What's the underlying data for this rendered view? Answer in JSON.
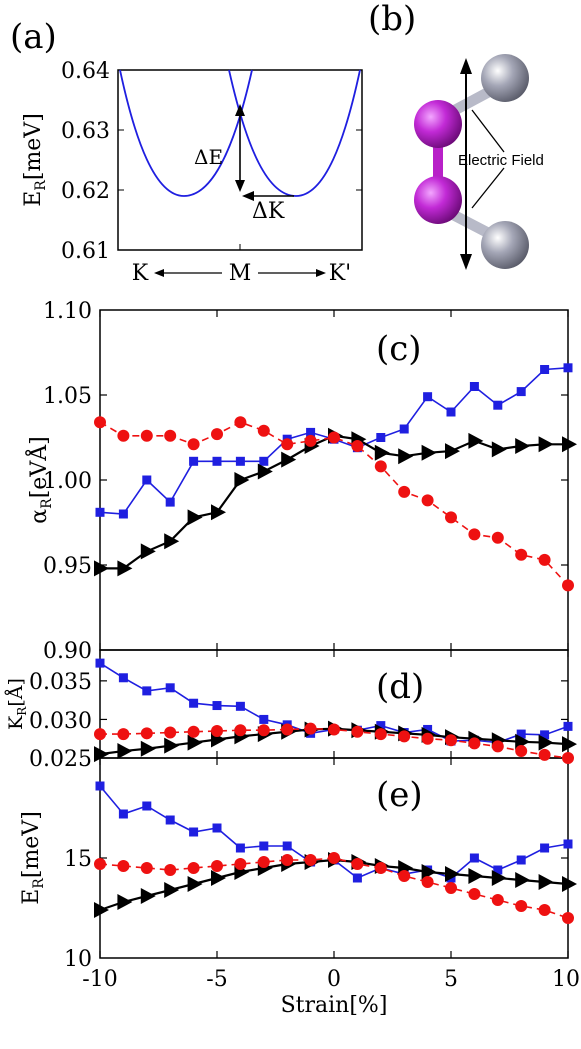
{
  "panel_labels": {
    "a": "(a)",
    "b": "(b)",
    "c": "(c)",
    "d": "(d)",
    "e": "(e)"
  },
  "panel_a": {
    "ylabel": "E_R[meV]",
    "yticks": [
      "0.64",
      "0.63",
      "0.62",
      "0.61"
    ],
    "xticks": [
      "K",
      "M",
      "K'"
    ],
    "annot_dE": "ΔE",
    "annot_dK": "ΔK"
  },
  "panel_b": {
    "field_label": "Electric Field",
    "colors": {
      "purple": "#bb22cc",
      "gray": "#9a9cac"
    }
  },
  "xaxis": {
    "label": "Strain[%]",
    "ticks": [
      "-10",
      "-5",
      "0",
      "5",
      "10"
    ],
    "range": [
      -10,
      10
    ]
  },
  "colors": {
    "blue": "#1f1fe0",
    "red": "#ee1111",
    "black": "#000000"
  },
  "chart_data": [
    {
      "type": "line",
      "panel": "(c)",
      "ylabel": "α_R[eVÅ]",
      "ylim": [
        0.9,
        1.1
      ],
      "yticks": [
        "0.90",
        "0.95",
        "1.00",
        "1.05",
        "1.10"
      ],
      "x": [
        -10,
        -9,
        -8,
        -7,
        -6,
        -5,
        -4,
        -3,
        -2,
        -1,
        0,
        1,
        2,
        3,
        4,
        5,
        6,
        7,
        8,
        9,
        10
      ],
      "series": [
        {
          "marker": "square",
          "color": "#1f1fe0",
          "dash": "solid",
          "values": [
            0.981,
            0.98,
            1.0,
            0.987,
            1.011,
            1.011,
            1.011,
            1.011,
            1.024,
            1.028,
            1.024,
            1.019,
            1.025,
            1.03,
            1.049,
            1.04,
            1.055,
            1.044,
            1.052,
            1.065,
            1.066
          ]
        },
        {
          "marker": "circle",
          "color": "#ee1111",
          "dash": "dashed",
          "values": [
            1.034,
            1.026,
            1.026,
            1.026,
            1.021,
            1.027,
            1.034,
            1.029,
            1.021,
            1.023,
            1.025,
            1.02,
            1.008,
            0.993,
            0.988,
            0.978,
            0.968,
            0.966,
            0.956,
            0.953,
            0.938
          ]
        },
        {
          "marker": "triangle",
          "color": "#000000",
          "dash": "solid",
          "values": [
            0.948,
            0.948,
            0.958,
            0.964,
            0.978,
            0.981,
            1.0,
            1.005,
            1.012,
            1.02,
            1.026,
            1.024,
            1.016,
            1.014,
            1.016,
            1.017,
            1.023,
            1.018,
            1.02,
            1.021,
            1.021
          ]
        }
      ]
    },
    {
      "type": "line",
      "panel": "(d)",
      "ylabel": "K_R[Å]",
      "ylim": [
        0.025,
        0.039
      ],
      "yticks": [
        "0.025",
        "0.030",
        "0.035"
      ],
      "x": [
        -10,
        -9,
        -8,
        -7,
        -6,
        -5,
        -4,
        -3,
        -2,
        -1,
        0,
        1,
        2,
        3,
        4,
        5,
        6,
        7,
        8,
        9,
        10
      ],
      "series": [
        {
          "marker": "square",
          "color": "#1f1fe0",
          "dash": "solid",
          "values": [
            0.0373,
            0.0354,
            0.0337,
            0.0341,
            0.0321,
            0.0318,
            0.0317,
            0.03,
            0.0293,
            0.0282,
            0.0287,
            0.0286,
            0.0292,
            0.0283,
            0.0287,
            0.0272,
            0.0273,
            0.027,
            0.0281,
            0.028,
            0.0291
          ]
        },
        {
          "marker": "circle",
          "color": "#ee1111",
          "dash": "dashed",
          "values": [
            0.0281,
            0.0281,
            0.0282,
            0.0283,
            0.0284,
            0.0285,
            0.0286,
            0.0286,
            0.0287,
            0.0288,
            0.0287,
            0.0284,
            0.0281,
            0.0278,
            0.0275,
            0.0273,
            0.0269,
            0.0265,
            0.0259,
            0.0254,
            0.025
          ]
        },
        {
          "marker": "triangle",
          "color": "#000000",
          "dash": "solid",
          "values": [
            0.0255,
            0.0259,
            0.0262,
            0.0266,
            0.027,
            0.0274,
            0.0278,
            0.0281,
            0.0284,
            0.0287,
            0.0288,
            0.0286,
            0.0284,
            0.0282,
            0.028,
            0.0277,
            0.0275,
            0.0273,
            0.0271,
            0.027,
            0.0268
          ]
        }
      ]
    },
    {
      "type": "line",
      "panel": "(e)",
      "ylabel": "E_R[meV]",
      "ylim": [
        10,
        20
      ],
      "yticks": [
        "10",
        "15"
      ],
      "x": [
        -10,
        -9,
        -8,
        -7,
        -6,
        -5,
        -4,
        -3,
        -2,
        -1,
        0,
        1,
        2,
        3,
        4,
        5,
        6,
        7,
        8,
        9,
        10
      ],
      "series": [
        {
          "marker": "square",
          "color": "#1f1fe0",
          "dash": "solid",
          "values": [
            18.6,
            17.2,
            17.6,
            16.9,
            16.3,
            16.5,
            15.5,
            15.6,
            15.6,
            14.8,
            14.9,
            14.0,
            14.5,
            14.2,
            14.4,
            14.0,
            15.0,
            14.4,
            14.9,
            15.5,
            15.7
          ]
        },
        {
          "marker": "circle",
          "color": "#ee1111",
          "dash": "dashed",
          "values": [
            14.7,
            14.6,
            14.5,
            14.4,
            14.5,
            14.6,
            14.7,
            14.8,
            14.9,
            14.9,
            15.0,
            14.7,
            14.5,
            14.1,
            13.8,
            13.5,
            13.2,
            12.9,
            12.6,
            12.4,
            12.0
          ]
        },
        {
          "marker": "triangle",
          "color": "#000000",
          "dash": "solid",
          "values": [
            12.4,
            12.8,
            13.1,
            13.4,
            13.7,
            14.0,
            14.3,
            14.5,
            14.7,
            14.8,
            14.9,
            14.8,
            14.6,
            14.5,
            14.3,
            14.2,
            14.1,
            14.0,
            13.9,
            13.8,
            13.7
          ]
        }
      ]
    }
  ]
}
